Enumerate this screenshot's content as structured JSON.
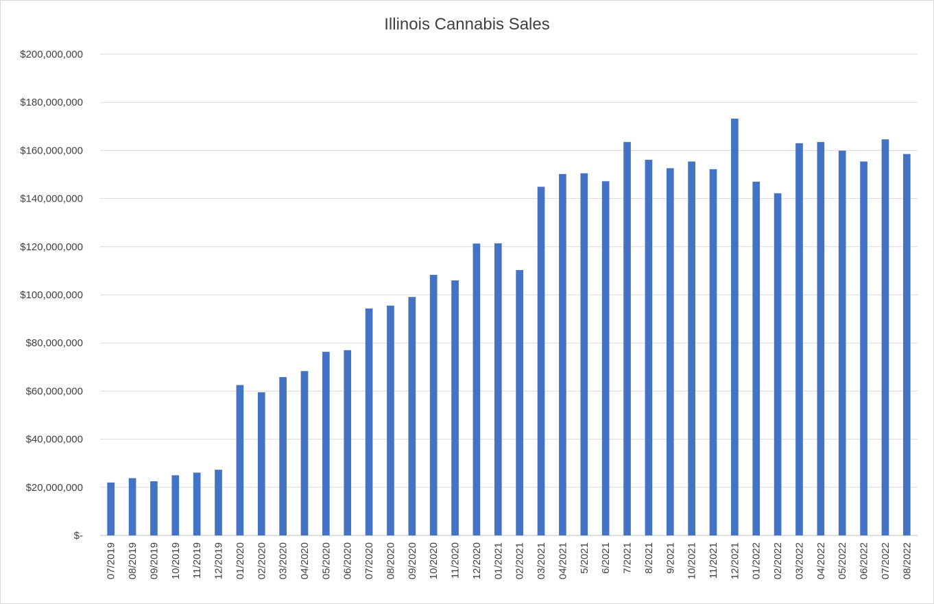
{
  "chart_data": {
    "type": "bar",
    "title": "Illinois Cannabis Sales",
    "xlabel": "",
    "ylabel": "",
    "ylim": [
      0,
      200000000
    ],
    "ytick_step": 20000000,
    "ytick_labels": [
      "$-",
      "$20,000,000",
      "$40,000,000",
      "$60,000,000",
      "$80,000,000",
      "$100,000,000",
      "$120,000,000",
      "$140,000,000",
      "$160,000,000",
      "$180,000,000",
      "$200,000,000"
    ],
    "grid": true,
    "legend": "none",
    "bar_color": "#4472c4",
    "categories": [
      "07/2019",
      "08/2019",
      "09/2019",
      "10/2019",
      "11/2019",
      "12/2019",
      "01/2020",
      "02/2020",
      "03/2020",
      "04/2020",
      "05/2020",
      "06/2020",
      "07/2020",
      "08/2020",
      "09/2020",
      "10/2020",
      "11/2020",
      "12/2020",
      "01/2021",
      "02/2021",
      "03/2021",
      "04/2021",
      "5/2021",
      "6/2021",
      "7/2021",
      "8/2021",
      "9/2021",
      "10/2021",
      "11/2021",
      "12/2021",
      "01/2022",
      "02/2022",
      "03/2022",
      "04/2022",
      "05/2022",
      "06/2022",
      "07/2022",
      "08/2022"
    ],
    "values": [
      22000000,
      23800000,
      22500000,
      25000000,
      26100000,
      27300000,
      62500000,
      59500000,
      65800000,
      68300000,
      76300000,
      77000000,
      94300000,
      95500000,
      99100000,
      108300000,
      106000000,
      121300000,
      121400000,
      110300000,
      144900000,
      150200000,
      150500000,
      147200000,
      163500000,
      156100000,
      152600000,
      155400000,
      152200000,
      173200000,
      147000000,
      142200000,
      163000000,
      163500000,
      159900000,
      155400000,
      164600000,
      158500000
    ]
  }
}
